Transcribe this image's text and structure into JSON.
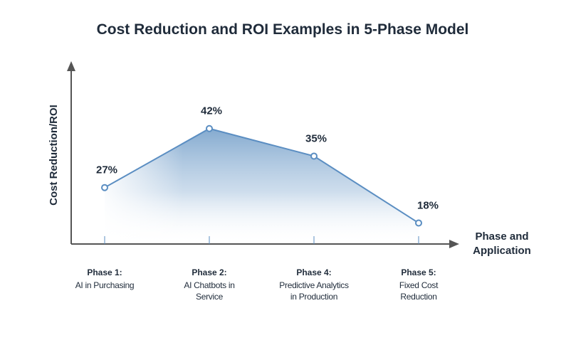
{
  "chart_data": {
    "type": "area",
    "title": "Cost Reduction and ROI Examples in 5-Phase Model",
    "ylabel": "Cost Reduction/ROI",
    "xlabel": [
      "Phase and",
      "Application"
    ],
    "categories": [
      {
        "phase": "Phase 1:",
        "lines": [
          "AI in Purchasing"
        ]
      },
      {
        "phase": "Phase 2:",
        "lines": [
          "AI Chatbots in",
          "Service"
        ]
      },
      {
        "phase": "Phase 4:",
        "lines": [
          "Predictive Analytics",
          "in Production"
        ]
      },
      {
        "phase": "Phase 5:",
        "lines": [
          "Fixed Cost",
          "Reduction"
        ]
      }
    ],
    "values": [
      27,
      42,
      35,
      18
    ],
    "labels": [
      "27%",
      "42%",
      "35%",
      "18%"
    ],
    "unit": "%",
    "grid": false,
    "legend": "none",
    "colors": {
      "line": "#5b8ec2",
      "fill_top": "#7ea6cd",
      "axis": "#555555",
      "text": "#1f2b3a"
    }
  }
}
